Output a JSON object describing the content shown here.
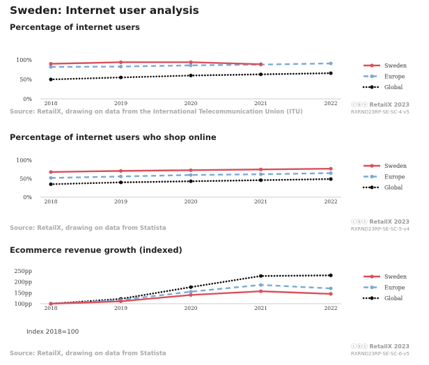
{
  "page": {
    "title": "Sweden: Internet user analysis"
  },
  "credit": {
    "license_icons": "ⓒⓑⓢ",
    "brand": "RetailX 2023"
  },
  "colors": {
    "sweden": "#d9505a",
    "europe": "#7ba9d6",
    "global": "#111111"
  },
  "chart_data": [
    {
      "type": "line",
      "title": "Percentage of internet users",
      "x": [
        "2018",
        "2019",
        "2020",
        "2021",
        "2022"
      ],
      "ylim": [
        0,
        100
      ],
      "yticks": [
        0,
        50,
        100
      ],
      "ytick_labels": [
        "0%",
        "50%",
        "100%"
      ],
      "series": [
        {
          "name": "Sweden",
          "values": [
            90,
            94,
            94,
            89,
            null
          ]
        },
        {
          "name": "Europe",
          "values": [
            82,
            83,
            86,
            88,
            91
          ]
        },
        {
          "name": "Global",
          "values": [
            50,
            55,
            60,
            63,
            66
          ]
        }
      ],
      "source": "Source: RetailX, drawing on data from the International Telecommunication Union (ITU)",
      "code": "RXRND23RP-SE-SC-4-v5",
      "legend": "right"
    },
    {
      "type": "line",
      "title": "Percentage of internet users who shop online",
      "x": [
        "2018",
        "2019",
        "2020",
        "2021",
        "2022"
      ],
      "ylim": [
        0,
        100
      ],
      "yticks": [
        0,
        50,
        100
      ],
      "ytick_labels": [
        "0%",
        "50%",
        "100%"
      ],
      "series": [
        {
          "name": "Sweden",
          "values": [
            68,
            71,
            73,
            75,
            77
          ]
        },
        {
          "name": "Europe",
          "values": [
            52,
            56,
            60,
            62,
            65
          ]
        },
        {
          "name": "Global",
          "values": [
            35,
            40,
            43,
            46,
            49
          ]
        }
      ],
      "source": "Source: RetailX, drawing on data from Statista",
      "code": "RXRND23RP-SE-SC-5-v4",
      "legend": "right"
    },
    {
      "type": "line",
      "title": "Ecommerce revenue growth (indexed)",
      "x": [
        "2018",
        "2019",
        "2020",
        "2021",
        "2022"
      ],
      "ylim": [
        100,
        250
      ],
      "yticks": [
        100,
        150,
        200,
        250
      ],
      "ytick_labels": [
        "100pp",
        "150pp",
        "200pp",
        "250pp"
      ],
      "series": [
        {
          "name": "Sweden",
          "values": [
            100,
            111,
            140,
            157,
            145
          ]
        },
        {
          "name": "Europe",
          "values": [
            100,
            117,
            155,
            186,
            170
          ]
        },
        {
          "name": "Global",
          "values": [
            100,
            122,
            176,
            227,
            230
          ]
        }
      ],
      "note": "Index 2018=100",
      "source": "Source: RetailX, drawing on data from Statista",
      "code": "RXRND23RP-SE-SC-6-v5",
      "legend": "right"
    }
  ]
}
